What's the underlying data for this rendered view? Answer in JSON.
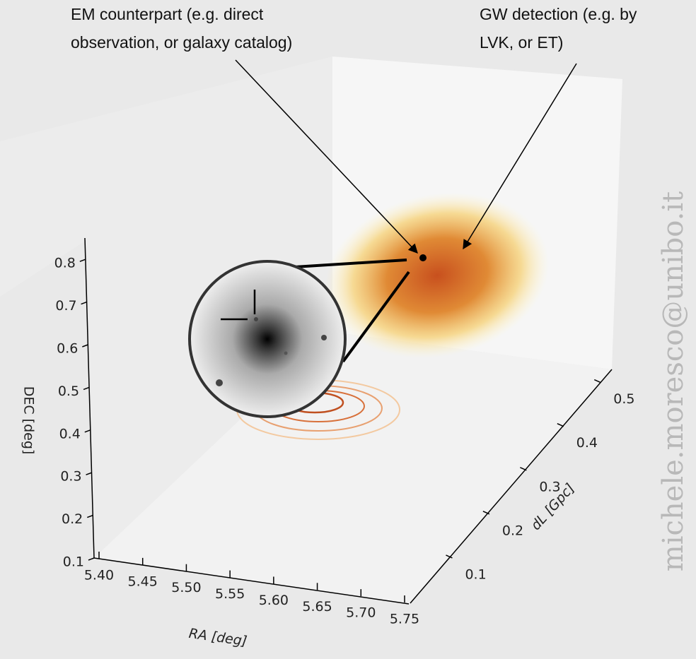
{
  "chart_data": {
    "type": "scatter3d",
    "xlabel": "RA [deg]",
    "ylabel": "DEC [deg]",
    "zlabel": "dL [Gpc]",
    "xlim": [
      5.4,
      5.75
    ],
    "xticks": [
      {
        "value": 5.4,
        "label": "5.40"
      },
      5.45,
      {
        "value": 5.5,
        "label": "5.50"
      },
      5.55,
      {
        "value": 5.6,
        "label": "5.60"
      },
      5.65,
      {
        "value": 5.7,
        "label": "5.70"
      },
      5.75
    ],
    "ylim": [
      0.1,
      0.85
    ],
    "yticks": [
      0.1,
      0.2,
      0.3,
      0.4,
      0.5,
      0.6,
      0.7,
      0.8
    ],
    "zlim": [
      0,
      0.53
    ],
    "zticks": [
      0.1,
      0.2,
      0.3,
      0.4,
      0.5
    ],
    "annotations": [
      {
        "lines": [
          "EM counterpart (e.g. direct",
          "observation, or galaxy catalog)"
        ]
      },
      {
        "lines": [
          "GW detection (e.g. by",
          "LVK, or ET)"
        ]
      }
    ],
    "watermark": "michele.moresco@unibo.it"
  }
}
